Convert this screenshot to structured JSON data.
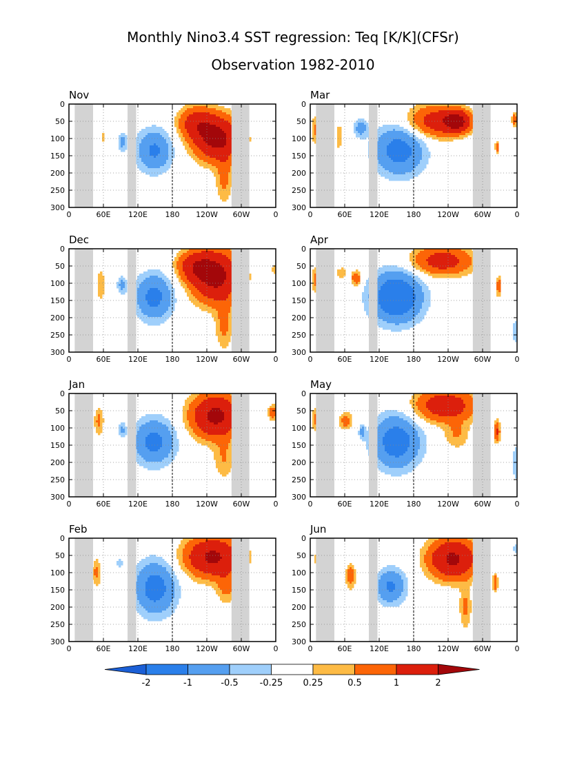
{
  "figure": {
    "title_line1": "Monthly Nino3.4 SST regression: Teq [K/K](CFSr)",
    "title_line2": "Observation 1982-2010"
  },
  "chart_data": {
    "type": "heatmap",
    "x_ticks": [
      "0",
      "60E",
      "120E",
      "180",
      "120W",
      "60W",
      "0"
    ],
    "x_tick_values": [
      0,
      60,
      120,
      180,
      240,
      300,
      360
    ],
    "xlim": [
      0,
      360
    ],
    "y_ticks": [
      "0",
      "50",
      "100",
      "150",
      "200",
      "250",
      "300"
    ],
    "y_tick_values": [
      0,
      50,
      100,
      150,
      200,
      250,
      300
    ],
    "ylim": [
      0,
      300
    ],
    "y_reversed": true,
    "grid": true,
    "dateline_lon": 180,
    "land_masks": [
      [
        10,
        42
      ],
      [
        102,
        117
      ],
      [
        283,
        314
      ]
    ],
    "panels": [
      {
        "label": "Nov",
        "blobs": [
          {
            "lon": 60,
            "depth": 95,
            "rlon": 4,
            "rdep": 20,
            "amp": 0.35
          },
          {
            "lon": 93,
            "depth": 110,
            "rlon": 8,
            "rdep": 28,
            "amp": -0.6
          },
          {
            "lon": 148,
            "depth": 135,
            "rlon": 30,
            "rdep": 60,
            "amp": -1.1
          },
          {
            "lon": 258,
            "depth": 100,
            "rlon": 38,
            "rdep": 60,
            "amp": 2.4
          },
          {
            "lon": 222,
            "depth": 55,
            "rlon": 30,
            "rdep": 45,
            "amp": 1.3
          },
          {
            "lon": 270,
            "depth": 215,
            "rlon": 14,
            "rdep": 70,
            "amp": 0.6
          }
        ]
      },
      {
        "label": "Mar",
        "blobs": [
          {
            "lon": 8,
            "depth": 75,
            "rlon": 6,
            "rdep": 40,
            "amp": 0.6
          },
          {
            "lon": 50,
            "depth": 95,
            "rlon": 6,
            "rdep": 40,
            "amp": 0.45
          },
          {
            "lon": 88,
            "depth": 70,
            "rlon": 12,
            "rdep": 25,
            "amp": -0.7
          },
          {
            "lon": 155,
            "depth": 135,
            "rlon": 42,
            "rdep": 70,
            "amp": -1.3
          },
          {
            "lon": 220,
            "depth": 50,
            "rlon": 48,
            "rdep": 45,
            "amp": 1.4
          },
          {
            "lon": 255,
            "depth": 50,
            "rlon": 22,
            "rdep": 28,
            "amp": 2.2
          },
          {
            "lon": 325,
            "depth": 125,
            "rlon": 3,
            "rdep": 20,
            "amp": 0.7
          },
          {
            "lon": 356,
            "depth": 45,
            "rlon": 5,
            "rdep": 18,
            "amp": 0.9
          }
        ]
      },
      {
        "label": "Dec",
        "blobs": [
          {
            "lon": 55,
            "depth": 105,
            "rlon": 8,
            "rdep": 50,
            "amp": 0.45
          },
          {
            "lon": 92,
            "depth": 105,
            "rlon": 8,
            "rdep": 25,
            "amp": -0.6
          },
          {
            "lon": 148,
            "depth": 140,
            "rlon": 32,
            "rdep": 65,
            "amp": -1.2
          },
          {
            "lon": 255,
            "depth": 80,
            "rlon": 40,
            "rdep": 70,
            "amp": 2.4
          },
          {
            "lon": 220,
            "depth": 50,
            "rlon": 30,
            "rdep": 40,
            "amp": 1.3
          },
          {
            "lon": 270,
            "depth": 220,
            "rlon": 15,
            "rdep": 70,
            "amp": 0.6
          },
          {
            "lon": 357,
            "depth": 60,
            "rlon": 4,
            "rdep": 18,
            "amp": 0.4
          }
        ]
      },
      {
        "label": "Apr",
        "blobs": [
          {
            "lon": 10,
            "depth": 90,
            "rlon": 8,
            "rdep": 40,
            "amp": 0.6
          },
          {
            "lon": 55,
            "depth": 70,
            "rlon": 10,
            "rdep": 18,
            "amp": 0.45
          },
          {
            "lon": 80,
            "depth": 85,
            "rlon": 8,
            "rdep": 20,
            "amp": 1.0
          },
          {
            "lon": 150,
            "depth": 140,
            "rlon": 42,
            "rdep": 70,
            "amp": -1.8
          },
          {
            "lon": 230,
            "depth": 35,
            "rlon": 50,
            "rdep": 40,
            "amp": 1.4
          },
          {
            "lon": 328,
            "depth": 110,
            "rlon": 4,
            "rdep": 30,
            "amp": 0.8
          },
          {
            "lon": 357,
            "depth": 240,
            "rlon": 4,
            "rdep": 40,
            "amp": -0.5
          }
        ]
      },
      {
        "label": "Jan",
        "blobs": [
          {
            "lon": 52,
            "depth": 80,
            "rlon": 8,
            "rdep": 40,
            "amp": 0.6
          },
          {
            "lon": 92,
            "depth": 105,
            "rlon": 6,
            "rdep": 20,
            "amp": -0.6
          },
          {
            "lon": 148,
            "depth": 140,
            "rlon": 35,
            "rdep": 65,
            "amp": -1.2
          },
          {
            "lon": 255,
            "depth": 65,
            "rlon": 40,
            "rdep": 60,
            "amp": 2.3
          },
          {
            "lon": 270,
            "depth": 190,
            "rlon": 18,
            "rdep": 60,
            "amp": 0.5
          },
          {
            "lon": 355,
            "depth": 55,
            "rlon": 8,
            "rdep": 22,
            "amp": 0.8
          }
        ]
      },
      {
        "label": "May",
        "blobs": [
          {
            "lon": 10,
            "depth": 75,
            "rlon": 8,
            "rdep": 35,
            "amp": 0.6
          },
          {
            "lon": 62,
            "depth": 80,
            "rlon": 12,
            "rdep": 25,
            "amp": 0.7
          },
          {
            "lon": 90,
            "depth": 110,
            "rlon": 5,
            "rdep": 20,
            "amp": -0.6
          },
          {
            "lon": 150,
            "depth": 140,
            "rlon": 40,
            "rdep": 75,
            "amp": -1.4
          },
          {
            "lon": 235,
            "depth": 35,
            "rlon": 50,
            "rdep": 45,
            "amp": 1.6
          },
          {
            "lon": 255,
            "depth": 120,
            "rlon": 22,
            "rdep": 40,
            "amp": 0.5
          },
          {
            "lon": 325,
            "depth": 110,
            "rlon": 5,
            "rdep": 30,
            "amp": 1.1
          },
          {
            "lon": 357,
            "depth": 200,
            "rlon": 4,
            "rdep": 60,
            "amp": -0.5
          }
        ]
      },
      {
        "label": "Feb",
        "blobs": [
          {
            "lon": 48,
            "depth": 100,
            "rlon": 8,
            "rdep": 40,
            "amp": 0.6
          },
          {
            "lon": 88,
            "depth": 70,
            "rlon": 6,
            "rdep": 15,
            "amp": -0.4
          },
          {
            "lon": 150,
            "depth": 145,
            "rlon": 35,
            "rdep": 75,
            "amp": -1.3
          },
          {
            "lon": 250,
            "depth": 55,
            "rlon": 45,
            "rdep": 55,
            "amp": 2.2
          },
          {
            "lon": 275,
            "depth": 140,
            "rlon": 18,
            "rdep": 50,
            "amp": 0.6
          }
        ]
      },
      {
        "label": "Jun",
        "blobs": [
          {
            "lon": 12,
            "depth": 60,
            "rlon": 6,
            "rdep": 20,
            "amp": 0.4
          },
          {
            "lon": 70,
            "depth": 110,
            "rlon": 8,
            "rdep": 35,
            "amp": 0.8
          },
          {
            "lon": 140,
            "depth": 140,
            "rlon": 25,
            "rdep": 50,
            "amp": -1.1
          },
          {
            "lon": 248,
            "depth": 60,
            "rlon": 40,
            "rdep": 55,
            "amp": 2.2
          },
          {
            "lon": 270,
            "depth": 200,
            "rlon": 10,
            "rdep": 60,
            "amp": 0.6
          },
          {
            "lon": 322,
            "depth": 130,
            "rlon": 4,
            "rdep": 25,
            "amp": 0.9
          },
          {
            "lon": 357,
            "depth": 30,
            "rlon": 4,
            "rdep": 15,
            "amp": -0.4
          }
        ]
      }
    ],
    "colorbar": {
      "levels": [
        -2,
        -1,
        -0.5,
        -0.25,
        0.25,
        0.5,
        1,
        2
      ],
      "labels": [
        "-2",
        "-1",
        "-0.5",
        "-0.25",
        "0.25",
        "0.5",
        "1",
        "2"
      ],
      "colors": [
        "#1b5fd6",
        "#2a7fea",
        "#559ff0",
        "#9fcffb",
        "#ffffff",
        "#fdbb45",
        "#fc6507",
        "#dc1f0c",
        "#a3070a"
      ]
    },
    "land_color": "#d3d3d3"
  }
}
